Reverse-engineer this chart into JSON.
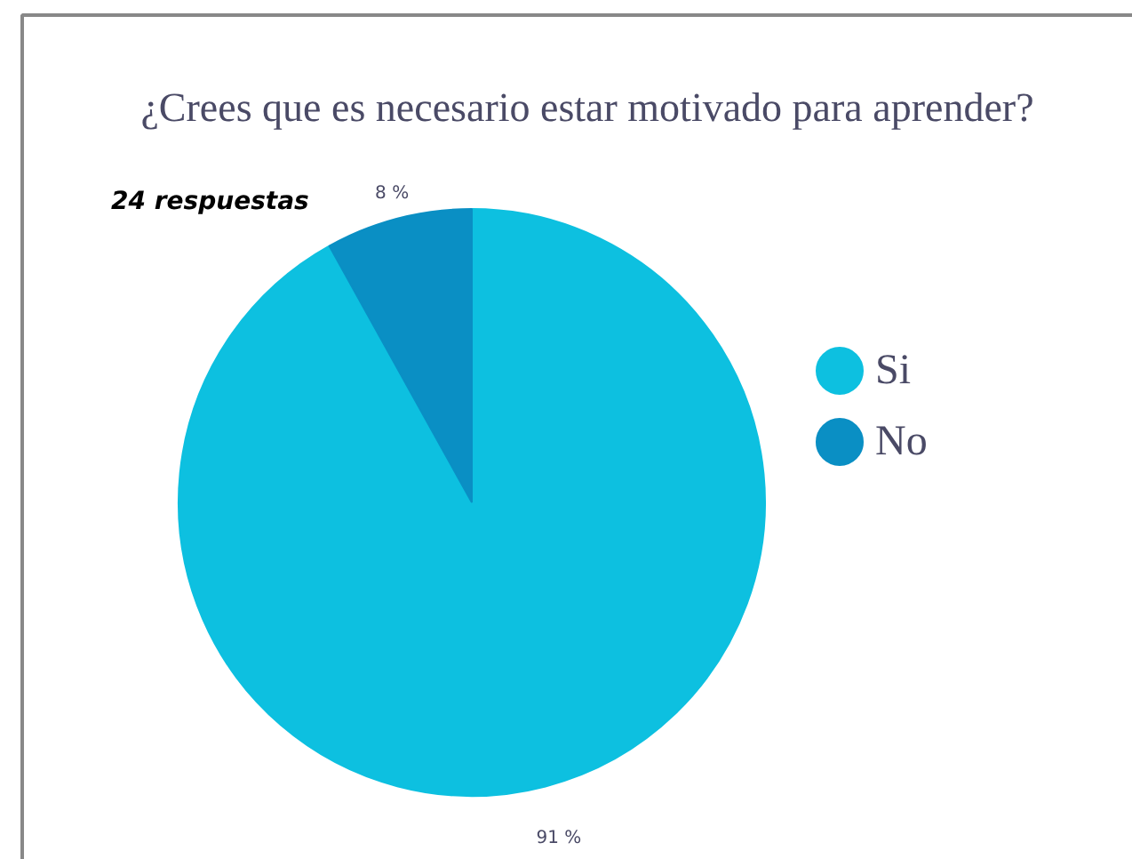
{
  "chart_data": {
    "type": "pie",
    "title": "¿Crees que es necesario estar motivado para aprender?",
    "annotations": [
      "24 respuestas"
    ],
    "categories": [
      "Si",
      "No"
    ],
    "values": [
      91,
      8
    ],
    "colors": [
      "#0dc0e0",
      "#0a8fc4"
    ],
    "value_labels": [
      "91 %",
      "8 %"
    ],
    "legend": "right"
  }
}
